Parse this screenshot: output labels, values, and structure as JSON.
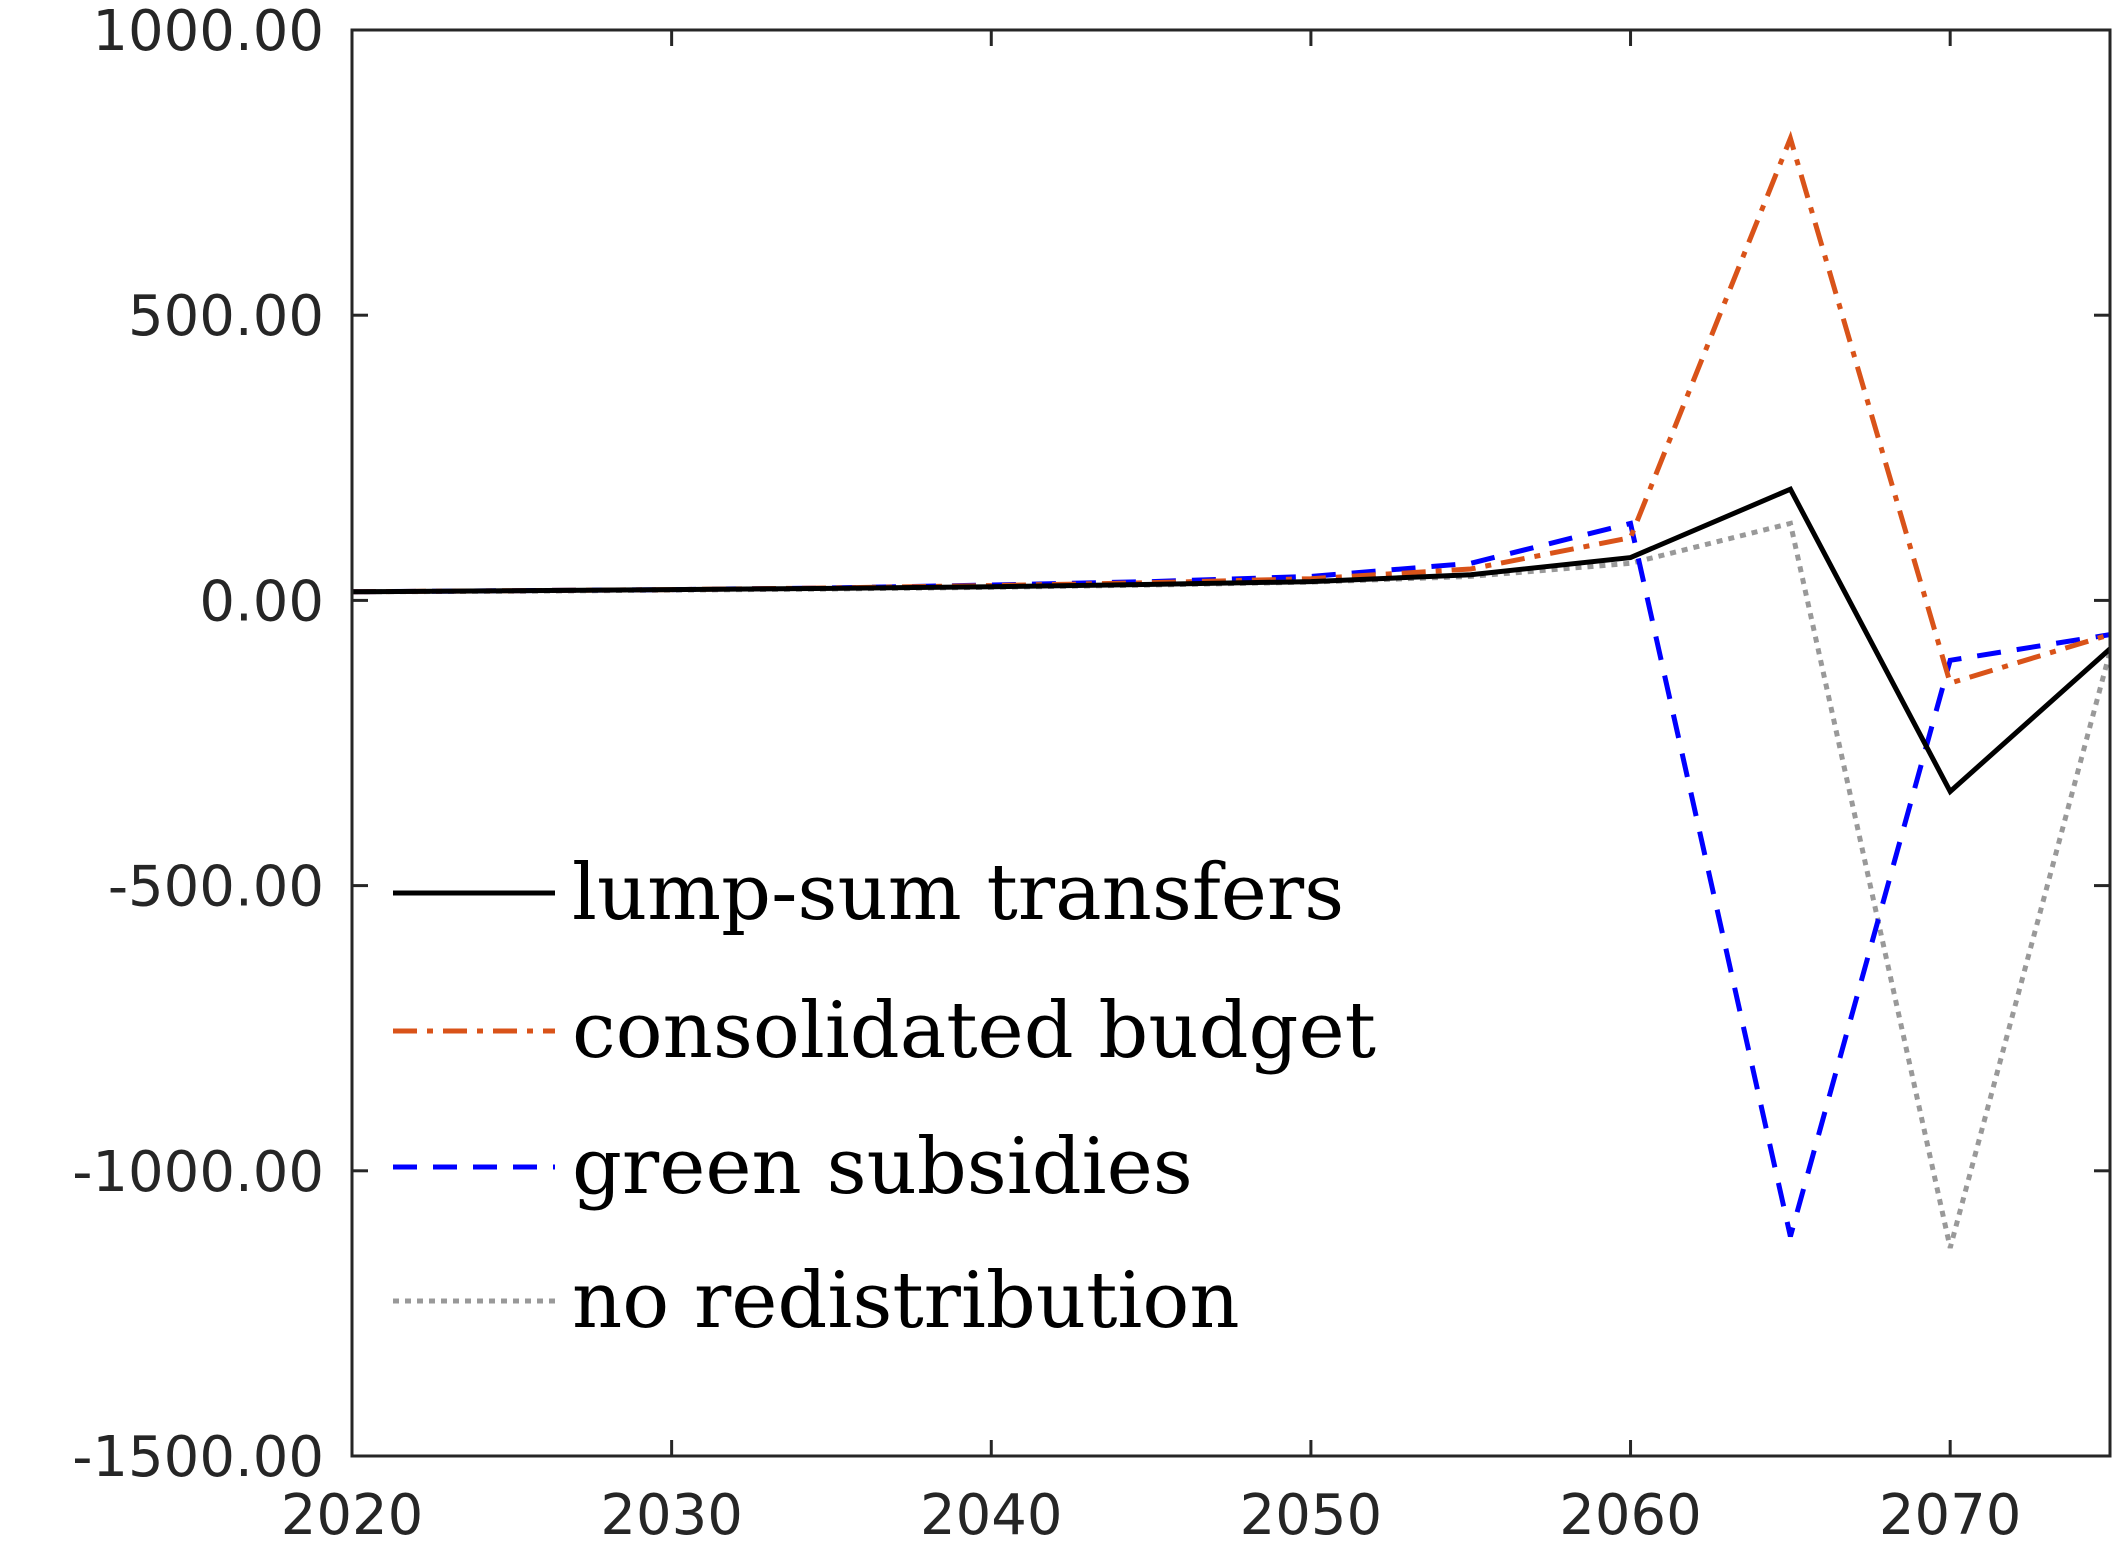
{
  "chart_data": {
    "type": "line",
    "title": "",
    "xlabel": "",
    "ylabel": "",
    "xlim": [
      2020,
      2075
    ],
    "ylim": [
      -1500,
      1000
    ],
    "xticks": [
      2020,
      2030,
      2040,
      2050,
      2060,
      2070
    ],
    "yticks": [
      -1500,
      -1000,
      -500,
      0,
      500,
      1000
    ],
    "xtick_labels": [
      "2020",
      "2030",
      "2040",
      "2050",
      "2060",
      "2070"
    ],
    "ytick_labels": [
      "-1500.00",
      "-1000.00",
      "-500.00",
      "0.00",
      "500.00",
      "1000.00"
    ],
    "grid": false,
    "legend_position": "lower-left",
    "x": [
      2020,
      2025,
      2030,
      2035,
      2040,
      2045,
      2050,
      2055,
      2060,
      2065,
      2070,
      2075
    ],
    "series": [
      {
        "name": "lump-sum transfers",
        "color": "#000000",
        "dash": "solid",
        "values": [
          15,
          17,
          19,
          21,
          24,
          28,
          33,
          45,
          75,
          195,
          -335,
          -85
        ]
      },
      {
        "name": "consolidated budget",
        "color": "#D95319",
        "dash": "dashdot",
        "values": [
          15,
          17,
          19,
          22,
          26,
          31,
          38,
          55,
          110,
          810,
          -145,
          -60
        ]
      },
      {
        "name": "green subsidies",
        "color": "#0000FF",
        "dash": "dashed",
        "values": [
          15,
          17,
          19,
          22,
          27,
          33,
          42,
          65,
          135,
          -1115,
          -105,
          -60
        ]
      },
      {
        "name": "no redistribution",
        "color": "#999999",
        "dash": "dotted",
        "values": [
          15,
          16,
          18,
          20,
          23,
          27,
          32,
          42,
          65,
          135,
          -1135,
          -90
        ]
      }
    ]
  }
}
